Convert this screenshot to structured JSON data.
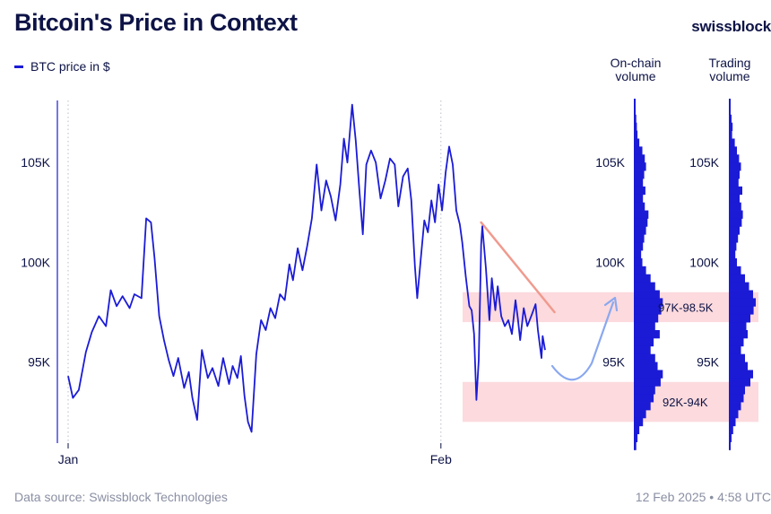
{
  "header": {
    "title": "Bitcoin's Price in Context",
    "brand": "swissblock"
  },
  "columns": {
    "onchain_line1": "On-chain",
    "onchain_line2": "volume",
    "trading_line1": "Trading",
    "trading_line2": "volume"
  },
  "footer": {
    "source": "Data source: Swissblock Technologies",
    "timestamp": "12 Feb 2025 • 4:58 UTC"
  },
  "colors": {
    "series": "#1b1bd6",
    "zone": "#fcdadd",
    "trendline": "#f09a8e",
    "arrow": "#8aa8ef",
    "axis": "#1b1bd6",
    "text": "#0d1346"
  },
  "chart_data": {
    "type": "line",
    "title": "Bitcoin's Price in Context",
    "xlabel": "",
    "ylabel": "",
    "legend": "BTC price in $",
    "y_ticks": [
      95000,
      100000,
      105000
    ],
    "y_tick_labels": [
      "95K",
      "100K",
      "105K"
    ],
    "ylim": [
      90800,
      108200
    ],
    "x_tick_labels": [
      "Jan",
      "Feb"
    ],
    "x_ticks_day": [
      0,
      31.5
    ],
    "xlim_day": [
      -1,
      41
    ],
    "series": [
      {
        "name": "BTC price in $",
        "points": [
          [
            0,
            94300
          ],
          [
            0.4,
            93200
          ],
          [
            0.9,
            93600
          ],
          [
            1.5,
            95500
          ],
          [
            2.0,
            96500
          ],
          [
            2.6,
            97300
          ],
          [
            3.2,
            96800
          ],
          [
            3.6,
            98600
          ],
          [
            4.1,
            97800
          ],
          [
            4.6,
            98300
          ],
          [
            5.2,
            97700
          ],
          [
            5.6,
            98400
          ],
          [
            6.2,
            98200
          ],
          [
            6.6,
            102200
          ],
          [
            7.0,
            102000
          ],
          [
            7.3,
            100200
          ],
          [
            7.7,
            97300
          ],
          [
            8.1,
            96100
          ],
          [
            8.5,
            95100
          ],
          [
            8.9,
            94300
          ],
          [
            9.3,
            95200
          ],
          [
            9.8,
            93700
          ],
          [
            10.2,
            94500
          ],
          [
            10.5,
            93200
          ],
          [
            10.9,
            92100
          ],
          [
            11.3,
            95600
          ],
          [
            11.8,
            94200
          ],
          [
            12.2,
            94700
          ],
          [
            12.7,
            93800
          ],
          [
            13.1,
            95200
          ],
          [
            13.6,
            93900
          ],
          [
            13.9,
            94800
          ],
          [
            14.3,
            94200
          ],
          [
            14.6,
            95300
          ],
          [
            14.9,
            93300
          ],
          [
            15.2,
            92000
          ],
          [
            15.5,
            91500
          ],
          [
            15.9,
            95400
          ],
          [
            16.3,
            97100
          ],
          [
            16.7,
            96600
          ],
          [
            17.1,
            97700
          ],
          [
            17.5,
            97200
          ],
          [
            17.9,
            98400
          ],
          [
            18.3,
            98100
          ],
          [
            18.7,
            99900
          ],
          [
            19.0,
            99100
          ],
          [
            19.4,
            100700
          ],
          [
            19.8,
            99600
          ],
          [
            20.2,
            100800
          ],
          [
            20.6,
            102200
          ],
          [
            21.0,
            104900
          ],
          [
            21.4,
            102600
          ],
          [
            21.8,
            104100
          ],
          [
            22.2,
            103300
          ],
          [
            22.6,
            102100
          ],
          [
            23.0,
            103900
          ],
          [
            23.3,
            106200
          ],
          [
            23.6,
            105000
          ],
          [
            24.0,
            107900
          ],
          [
            24.3,
            106100
          ],
          [
            24.6,
            103700
          ],
          [
            24.9,
            101400
          ],
          [
            25.2,
            104900
          ],
          [
            25.6,
            105600
          ],
          [
            26.0,
            105000
          ],
          [
            26.4,
            103200
          ],
          [
            26.8,
            104100
          ],
          [
            27.2,
            105200
          ],
          [
            27.6,
            104900
          ],
          [
            27.9,
            102800
          ],
          [
            28.3,
            104300
          ],
          [
            28.7,
            104700
          ],
          [
            29.0,
            103100
          ],
          [
            29.3,
            99800
          ],
          [
            29.5,
            98200
          ],
          [
            29.8,
            100200
          ],
          [
            30.1,
            102100
          ],
          [
            30.4,
            101500
          ],
          [
            30.7,
            103100
          ],
          [
            31.0,
            102000
          ],
          [
            31.3,
            103900
          ],
          [
            31.6,
            102600
          ],
          [
            31.9,
            104500
          ],
          [
            32.2,
            105800
          ],
          [
            32.5,
            104900
          ],
          [
            32.8,
            102600
          ],
          [
            33.1,
            101900
          ],
          [
            33.3,
            101000
          ],
          [
            33.6,
            99300
          ],
          [
            33.9,
            97800
          ],
          [
            34.1,
            97600
          ],
          [
            34.3,
            96400
          ],
          [
            34.5,
            93100
          ],
          [
            34.7,
            95100
          ],
          [
            34.9,
            100900
          ],
          [
            35.0,
            101800
          ],
          [
            35.3,
            99700
          ],
          [
            35.6,
            97100
          ],
          [
            35.8,
            99200
          ],
          [
            36.1,
            97600
          ],
          [
            36.3,
            98800
          ],
          [
            36.6,
            97300
          ],
          [
            36.9,
            96800
          ],
          [
            37.2,
            97100
          ],
          [
            37.5,
            96400
          ],
          [
            37.8,
            98100
          ],
          [
            38.0,
            97200
          ],
          [
            38.2,
            96100
          ],
          [
            38.5,
            97700
          ],
          [
            38.8,
            96800
          ],
          [
            39.2,
            97400
          ],
          [
            39.5,
            97900
          ],
          [
            39.7,
            96600
          ],
          [
            40.0,
            95200
          ],
          [
            40.1,
            96300
          ],
          [
            40.3,
            95600
          ]
        ]
      }
    ],
    "annotations": {
      "resistance_zone": {
        "label": "97K-98.5K",
        "from": 97000,
        "to": 98500
      },
      "support_zone": {
        "label": "92K-94K",
        "from": 92000,
        "to": 94000
      },
      "trendline": {
        "from": [
          34.9,
          102000
        ],
        "to": [
          41.1,
          97500
        ]
      },
      "arrow": "bounce from lower zone toward upper zone"
    },
    "volume_profiles": [
      {
        "name": "On-chain volume",
        "levels": [
          [
            108000,
            0.04
          ],
          [
            107600,
            0.06
          ],
          [
            107200,
            0.08
          ],
          [
            106800,
            0.1
          ],
          [
            106400,
            0.12
          ],
          [
            106000,
            0.18
          ],
          [
            105600,
            0.28
          ],
          [
            105200,
            0.36
          ],
          [
            104800,
            0.4
          ],
          [
            104400,
            0.34
          ],
          [
            104000,
            0.3
          ],
          [
            103600,
            0.38
          ],
          [
            103200,
            0.3
          ],
          [
            102800,
            0.36
          ],
          [
            102400,
            0.48
          ],
          [
            102000,
            0.45
          ],
          [
            101600,
            0.4
          ],
          [
            101200,
            0.34
          ],
          [
            100800,
            0.3
          ],
          [
            100400,
            0.24
          ],
          [
            100000,
            0.28
          ],
          [
            99600,
            0.4
          ],
          [
            99200,
            0.55
          ],
          [
            98800,
            0.7
          ],
          [
            98400,
            0.85
          ],
          [
            98000,
            0.95
          ],
          [
            97600,
            0.9
          ],
          [
            97200,
            0.8
          ],
          [
            96800,
            0.7
          ],
          [
            96400,
            0.85
          ],
          [
            96000,
            0.65
          ],
          [
            95600,
            0.55
          ],
          [
            95200,
            0.7
          ],
          [
            94800,
            0.78
          ],
          [
            94400,
            0.95
          ],
          [
            94000,
            0.88
          ],
          [
            93600,
            0.7
          ],
          [
            93200,
            0.65
          ],
          [
            92800,
            0.55
          ],
          [
            92400,
            0.4
          ],
          [
            92000,
            0.3
          ],
          [
            91600,
            0.18
          ],
          [
            91200,
            0.12
          ],
          [
            90800,
            0.08
          ]
        ]
      },
      {
        "name": "Trading volume",
        "levels": [
          [
            108000,
            0.04
          ],
          [
            107600,
            0.06
          ],
          [
            107200,
            0.1
          ],
          [
            106800,
            0.14
          ],
          [
            106400,
            0.12
          ],
          [
            106000,
            0.22
          ],
          [
            105600,
            0.3
          ],
          [
            105200,
            0.38
          ],
          [
            104800,
            0.45
          ],
          [
            104400,
            0.4
          ],
          [
            104000,
            0.36
          ],
          [
            103600,
            0.5
          ],
          [
            103200,
            0.4
          ],
          [
            102800,
            0.46
          ],
          [
            102400,
            0.52
          ],
          [
            102000,
            0.48
          ],
          [
            101600,
            0.4
          ],
          [
            101200,
            0.34
          ],
          [
            100800,
            0.28
          ],
          [
            100400,
            0.24
          ],
          [
            100000,
            0.3
          ],
          [
            99600,
            0.45
          ],
          [
            99200,
            0.6
          ],
          [
            98800,
            0.75
          ],
          [
            98400,
            0.9
          ],
          [
            98000,
            1.0
          ],
          [
            97600,
            0.92
          ],
          [
            97200,
            0.8
          ],
          [
            96800,
            0.65
          ],
          [
            96400,
            0.7
          ],
          [
            96000,
            0.55
          ],
          [
            95600,
            0.45
          ],
          [
            95200,
            0.6
          ],
          [
            94800,
            0.7
          ],
          [
            94400,
            0.9
          ],
          [
            94000,
            0.8
          ],
          [
            93600,
            0.6
          ],
          [
            93200,
            0.55
          ],
          [
            92800,
            0.45
          ],
          [
            92400,
            0.35
          ],
          [
            92000,
            0.25
          ],
          [
            91600,
            0.16
          ],
          [
            91200,
            0.1
          ],
          [
            90800,
            0.06
          ]
        ]
      }
    ]
  }
}
